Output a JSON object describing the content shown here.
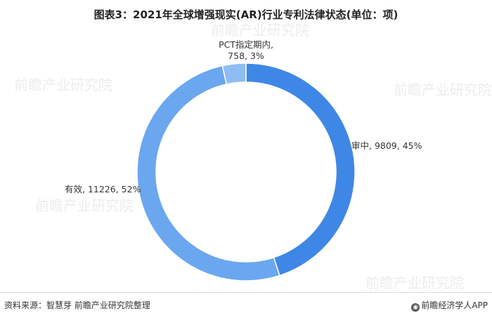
{
  "title": "图表3：2021年全球增强现实(AR)行业专利法律状态(单位：项)",
  "chart_data": {
    "type": "pie",
    "title": "图表3：2021年全球增强现实(AR)行业专利法律状态(单位：项)",
    "donut": true,
    "start": "12 o'clock, clockwise",
    "slices": [
      {
        "label": "审中",
        "value": 9809,
        "percent": 45,
        "color": "#3f87e6"
      },
      {
        "label": "有效",
        "value": 11226,
        "percent": 52,
        "color": "#6aa7ef"
      },
      {
        "label": "PCT指定期内",
        "value": 758,
        "percent": 3,
        "color": "#8fbdf3"
      }
    ]
  },
  "labels": {
    "pct_line1": "PCT指定期内,",
    "pct_line2": "758, 3%",
    "shen": "审中, 9809, 45%",
    "you": "有效, 11226, 52%"
  },
  "footer": {
    "source": "资料来源：智慧芽 前瞻产业研究院整理",
    "brand": "前瞻经济学人APP"
  },
  "watermark": "前瞻产业研究院"
}
